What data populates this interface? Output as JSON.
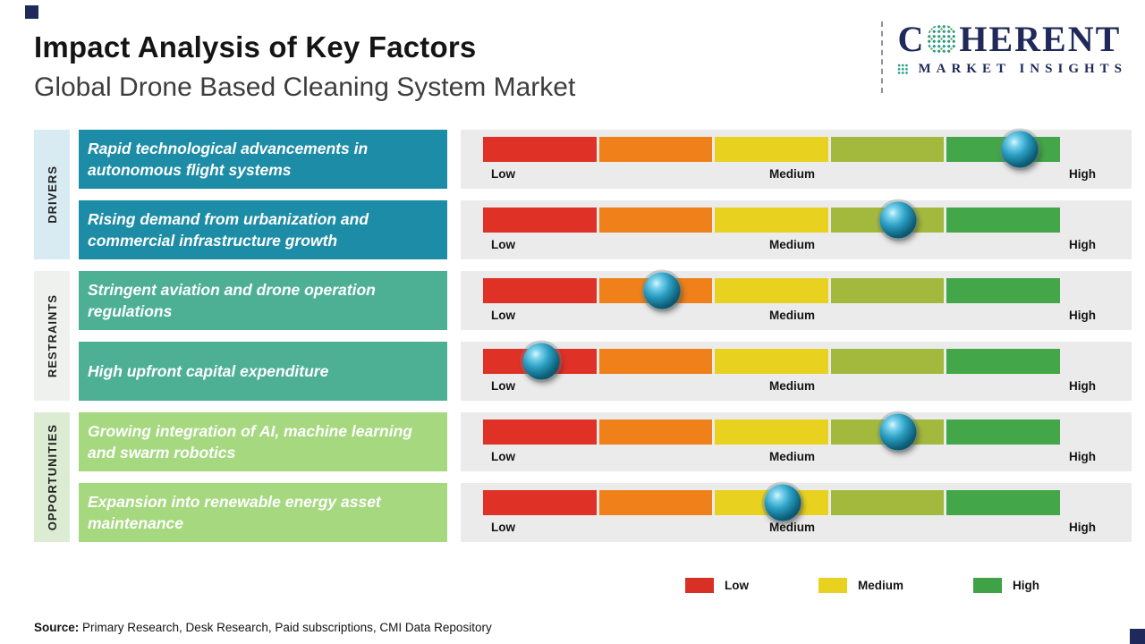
{
  "header": {
    "title": "Impact Analysis of Key Factors",
    "subtitle": "Global Drone Based Cleaning System Market"
  },
  "logo": {
    "name_first": "C",
    "name_rest": "HERENT",
    "tagline": "MARKET INSIGHTS"
  },
  "categories": [
    {
      "label": "DRIVERS"
    },
    {
      "label": "RESTRAINTS"
    },
    {
      "label": "OPPORTUNITIES"
    }
  ],
  "rows": [
    {
      "category": "DRIVERS",
      "factor": "Rapid technological advancements in autonomous flight systems",
      "impact_pct": 93,
      "impact_level": "High"
    },
    {
      "category": "DRIVERS",
      "factor": "Rising demand from urbanization and commercial infrastructure growth",
      "impact_pct": 72,
      "impact_level": "Medium-High"
    },
    {
      "category": "RESTRAINTS",
      "factor": "Stringent aviation and drone operation regulations",
      "impact_pct": 31,
      "impact_level": "Low-Medium"
    },
    {
      "category": "RESTRAINTS",
      "factor": "High upfront capital expenditure",
      "impact_pct": 10,
      "impact_level": "Low"
    },
    {
      "category": "OPPORTUNITIES",
      "factor": "Growing integration of AI, machine learning and swarm robotics",
      "impact_pct": 72,
      "impact_level": "Medium-High"
    },
    {
      "category": "OPPORTUNITIES",
      "factor": "Expansion into renewable energy asset maintenance",
      "impact_pct": 52,
      "impact_level": "Medium"
    }
  ],
  "scale": {
    "low": "Low",
    "medium": "Medium",
    "high": "High"
  },
  "legend": [
    {
      "label": "Low",
      "color": "#d93025"
    },
    {
      "label": "Medium",
      "color": "#e8d21f"
    },
    {
      "label": "High",
      "color": "#3fa246"
    }
  ],
  "source": {
    "label": "Source:",
    "text": "Primary Research, Desk Research, Paid subscriptions, CMI Data Repository"
  },
  "palette": {
    "drivers_box": "#1d8ca6",
    "restraints_box": "#4db095",
    "opportunities_box": "#a5d87f",
    "drivers_strip": "#d8eaf2",
    "restraints_strip": "#eef1ee",
    "opportunities_strip": "#dcecd2",
    "segments": [
      "#e03127",
      "#f08019",
      "#e8d21f",
      "#a3b93e",
      "#43a648"
    ],
    "navy": "#1f2a5a"
  },
  "chart_data": {
    "type": "scatter",
    "title": "Impact Analysis of Key Factors",
    "subtitle": "Global Drone Based Cleaning System Market",
    "x_axis": {
      "labels": [
        "Low",
        "Medium",
        "High"
      ],
      "range_pct": [
        0,
        100
      ]
    },
    "legend": [
      "Low",
      "Medium",
      "High"
    ],
    "points": [
      {
        "category": "DRIVERS",
        "factor": "Rapid technological advancements in autonomous flight systems",
        "impact_pct": 93,
        "impact_level": "High"
      },
      {
        "category": "DRIVERS",
        "factor": "Rising demand from urbanization and commercial infrastructure growth",
        "impact_pct": 72,
        "impact_level": "Medium-High"
      },
      {
        "category": "RESTRAINTS",
        "factor": "Stringent aviation and drone operation regulations",
        "impact_pct": 31,
        "impact_level": "Low-Medium"
      },
      {
        "category": "RESTRAINTS",
        "factor": "High upfront capital expenditure",
        "impact_pct": 10,
        "impact_level": "Low"
      },
      {
        "category": "OPPORTUNITIES",
        "factor": "Growing integration of AI, machine learning and swarm robotics",
        "impact_pct": 72,
        "impact_level": "Medium-High"
      },
      {
        "category": "OPPORTUNITIES",
        "factor": "Expansion into renewable energy asset maintenance",
        "impact_pct": 52,
        "impact_level": "Medium"
      }
    ]
  }
}
